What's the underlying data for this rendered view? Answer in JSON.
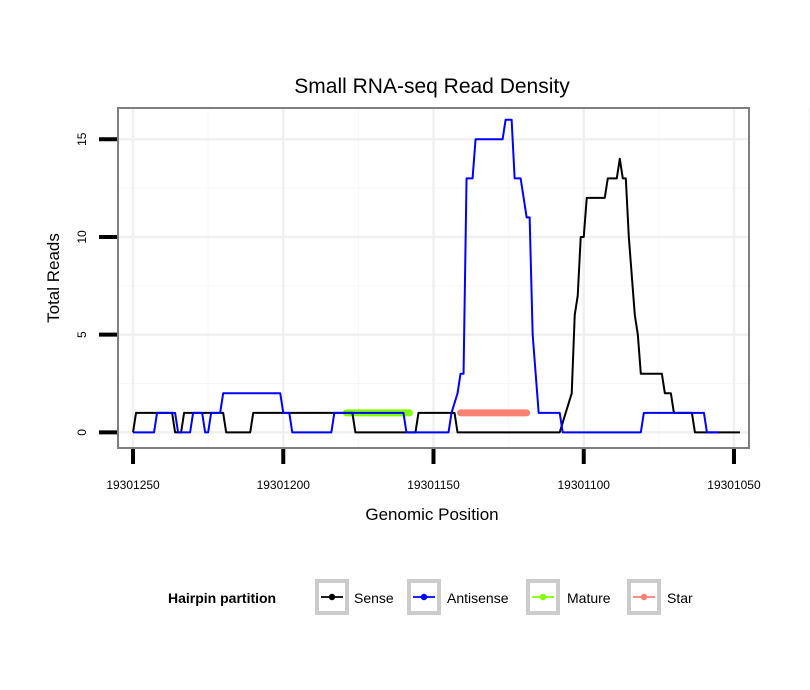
{
  "chart_data": {
    "type": "line",
    "title": "Small RNA-seq Read Density",
    "xlabel": "Genomic Position",
    "ylabel": "Total Reads",
    "x_reversed": true,
    "xlim": [
      19301255,
      19301045
    ],
    "ylim": [
      -0.8,
      16.6
    ],
    "x_ticks": [
      19301250,
      19301200,
      19301150,
      19301100,
      19301050
    ],
    "x_tick_labels": [
      "19301250",
      "19301200",
      "19301150",
      "19301100",
      "19301050"
    ],
    "y_ticks": [
      0,
      5,
      10,
      15
    ],
    "y_tick_labels": [
      "0",
      "5",
      "10",
      "15"
    ],
    "grid": true,
    "legend_position": "bottom",
    "legend": {
      "title": "Hairpin partition",
      "entries": [
        {
          "label": "Sense",
          "color": "#000000"
        },
        {
          "label": "Antisense",
          "color": "#0000ff"
        },
        {
          "label": "Mature",
          "color": "#7fff00"
        },
        {
          "label": "Star",
          "color": "#fa8072"
        }
      ]
    },
    "series": [
      {
        "name": "Sense",
        "color": "#000000",
        "points": [
          [
            19301250,
            0
          ],
          [
            19301249,
            1
          ],
          [
            19301237,
            1
          ],
          [
            19301236,
            0
          ],
          [
            19301234,
            0
          ],
          [
            19301233,
            1
          ],
          [
            19301220,
            1
          ],
          [
            19301219,
            0
          ],
          [
            19301211,
            0
          ],
          [
            19301210,
            1
          ],
          [
            19301177,
            1
          ],
          [
            19301176,
            0
          ],
          [
            19301156,
            0
          ],
          [
            19301155,
            1
          ],
          [
            19301143,
            1
          ],
          [
            19301142,
            0
          ],
          [
            19301108,
            0
          ],
          [
            19301106,
            1
          ],
          [
            19301104,
            2
          ],
          [
            19301103,
            6
          ],
          [
            19301102,
            7
          ],
          [
            19301101,
            10
          ],
          [
            19301100,
            10
          ],
          [
            19301099,
            12
          ],
          [
            19301093,
            12
          ],
          [
            19301092,
            13
          ],
          [
            19301089,
            13
          ],
          [
            19301088,
            14
          ],
          [
            19301087,
            13
          ],
          [
            19301086,
            13
          ],
          [
            19301085,
            10
          ],
          [
            19301083,
            6
          ],
          [
            19301082,
            5
          ],
          [
            19301081,
            3
          ],
          [
            19301074,
            3
          ],
          [
            19301073,
            2
          ],
          [
            19301071,
            2
          ],
          [
            19301070,
            1
          ],
          [
            19301064,
            1
          ],
          [
            19301063,
            0
          ],
          [
            19301048,
            0
          ]
        ]
      },
      {
        "name": "Antisense",
        "color": "#0000ff",
        "points": [
          [
            19301250,
            0
          ],
          [
            19301243,
            0
          ],
          [
            19301242,
            1
          ],
          [
            19301236,
            1
          ],
          [
            19301235,
            0
          ],
          [
            19301231,
            0
          ],
          [
            19301230,
            1
          ],
          [
            19301227,
            1
          ],
          [
            19301226,
            0
          ],
          [
            19301225,
            0
          ],
          [
            19301224,
            1
          ],
          [
            19301221,
            1
          ],
          [
            19301220,
            2
          ],
          [
            19301201,
            2
          ],
          [
            19301200,
            1
          ],
          [
            19301198,
            1
          ],
          [
            19301197,
            0
          ],
          [
            19301184,
            0
          ],
          [
            19301183,
            1
          ],
          [
            19301160,
            1
          ],
          [
            19301159,
            0
          ],
          [
            19301145,
            0
          ],
          [
            19301144,
            1
          ],
          [
            19301142,
            2
          ],
          [
            19301141,
            3
          ],
          [
            19301140,
            3
          ],
          [
            19301139,
            13
          ],
          [
            19301137,
            13
          ],
          [
            19301136,
            15
          ],
          [
            19301127,
            15
          ],
          [
            19301126,
            16
          ],
          [
            19301124,
            16
          ],
          [
            19301123,
            13
          ],
          [
            19301121,
            13
          ],
          [
            19301119,
            11
          ],
          [
            19301118,
            11
          ],
          [
            19301117,
            5
          ],
          [
            19301115,
            1
          ],
          [
            19301108,
            1
          ],
          [
            19301107,
            0
          ],
          [
            19301081,
            0
          ],
          [
            19301080,
            1
          ],
          [
            19301067,
            1
          ],
          [
            19301066,
            1
          ],
          [
            19301065,
            1
          ],
          [
            19301060,
            1
          ],
          [
            19301059,
            0
          ],
          [
            19301055,
            0
          ]
        ]
      }
    ],
    "segments": [
      {
        "name": "Mature",
        "color": "#7fff00",
        "x_start": 19301179,
        "x_end": 19301158,
        "y": 1
      },
      {
        "name": "Star",
        "color": "#fa8072",
        "x_start": 19301141,
        "x_end": 19301119,
        "y": 1
      }
    ]
  }
}
